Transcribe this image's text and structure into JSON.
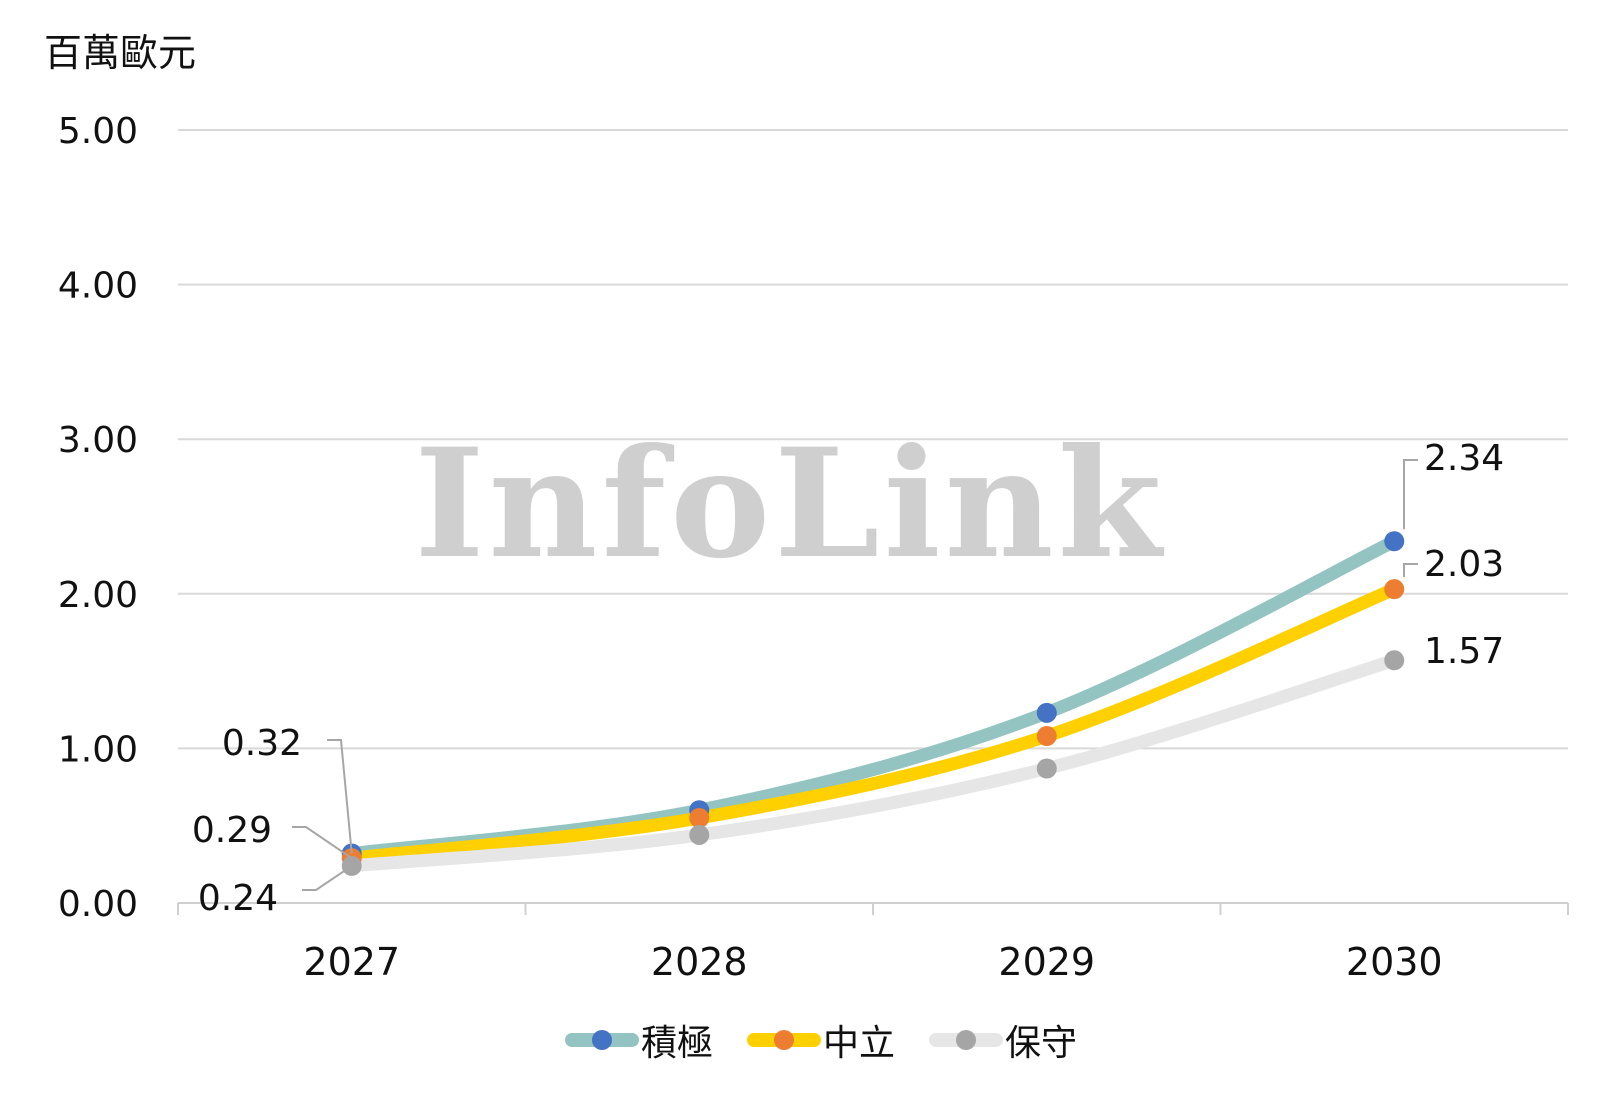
{
  "unit_label": "百萬歐元",
  "watermark": "InfoLink",
  "chart_data": {
    "type": "line",
    "title": "",
    "xlabel": "",
    "ylabel": "百萬歐元",
    "categories": [
      "2027",
      "2028",
      "2029",
      "2030"
    ],
    "ylim": [
      0,
      5
    ],
    "yticks": [
      "0.00",
      "1.00",
      "2.00",
      "3.00",
      "4.00",
      "5.00"
    ],
    "grid": true,
    "legend_position": "bottom",
    "smooth": true,
    "series": [
      {
        "name": "積極",
        "values": [
          0.32,
          0.6,
          1.23,
          2.34
        ],
        "line_color": "#93c4c1",
        "marker_color": "#4472c4",
        "labels": [
          {
            "index": 0,
            "text": "0.32"
          },
          {
            "index": 3,
            "text": "2.34"
          }
        ]
      },
      {
        "name": "中立",
        "values": [
          0.29,
          0.55,
          1.08,
          2.03
        ],
        "line_color": "#ffd000",
        "marker_color": "#ed7d31",
        "labels": [
          {
            "index": 0,
            "text": "0.29"
          },
          {
            "index": 3,
            "text": "2.03"
          }
        ]
      },
      {
        "name": "保守",
        "values": [
          0.24,
          0.44,
          0.87,
          1.57
        ],
        "line_color": "#e6e6e6",
        "marker_color": "#a5a5a5",
        "labels": [
          {
            "index": 0,
            "text": "0.24"
          },
          {
            "index": 3,
            "text": "1.57"
          }
        ]
      }
    ]
  }
}
